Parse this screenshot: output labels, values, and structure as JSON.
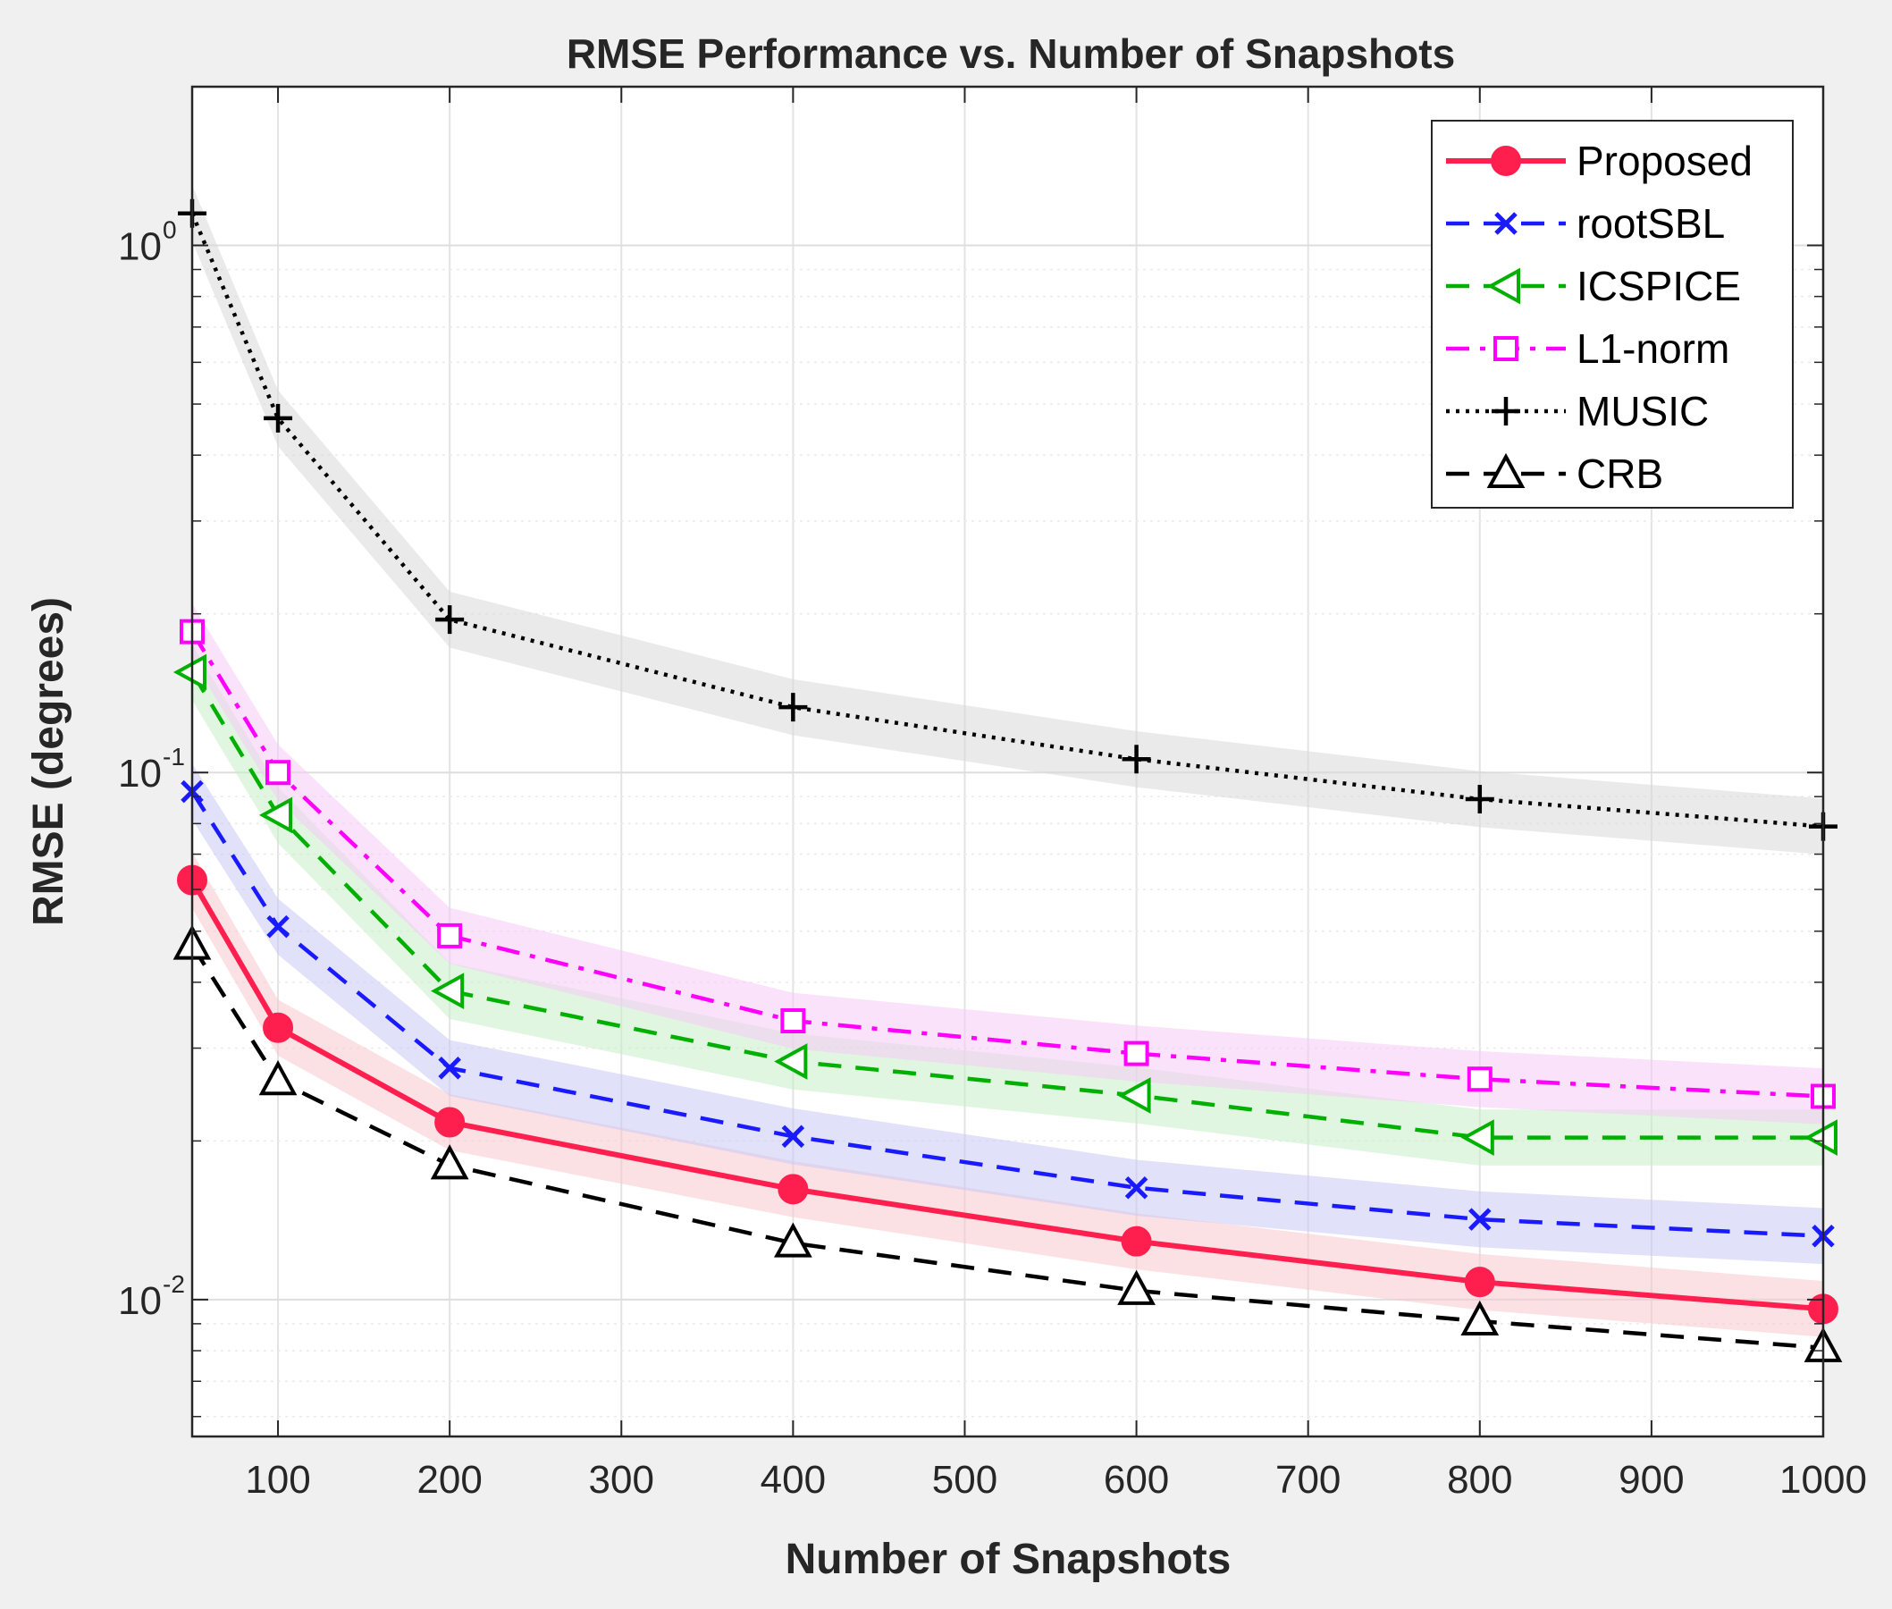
{
  "chart_data": {
    "type": "line",
    "title": "RMSE Performance vs. Number of Snapshots",
    "xlabel": "Number of Snapshots",
    "ylabel": "RMSE (degrees)",
    "xlim": [
      50,
      1000
    ],
    "ylim": [
      0.0055,
      2
    ],
    "yscale": "log",
    "x": [
      50,
      100,
      200,
      400,
      600,
      800,
      1000
    ],
    "xticks": [
      100,
      200,
      300,
      400,
      500,
      600,
      700,
      800,
      900,
      1000
    ],
    "yticks": [
      {
        "value": 1,
        "base": "10",
        "exp": "0"
      },
      {
        "value": 0.1,
        "base": "10",
        "exp": "-1"
      },
      {
        "value": 0.01,
        "base": "10",
        "exp": "-2"
      }
    ],
    "grid": true,
    "legend_position": "top-right",
    "series": [
      {
        "name": "Proposed",
        "color": "#ff1f4f",
        "marker": "circle",
        "line": "solid",
        "band_color": "#f7c6cd",
        "values": [
          0.0625,
          0.0328,
          0.0217,
          0.0162,
          0.0129,
          0.0108,
          0.0096
        ]
      },
      {
        "name": "rootSBL",
        "color": "#1a1aff",
        "marker": "x",
        "line": "dashed",
        "band_color": "#c8c8f4",
        "values": [
          0.092,
          0.051,
          0.0275,
          0.0204,
          0.0163,
          0.0142,
          0.0132
        ]
      },
      {
        "name": "ICSPICE",
        "color": "#00b000",
        "marker": "triangle-left",
        "line": "dashed",
        "band_color": "#c8eec8",
        "values": [
          0.155,
          0.083,
          0.0385,
          0.0283,
          0.0244,
          0.0203,
          0.0203
        ]
      },
      {
        "name": "L1-norm",
        "color": "#ff00ff",
        "marker": "square",
        "line": "dashdot",
        "band_color": "#f6cbf6",
        "values": [
          0.185,
          0.1,
          0.049,
          0.0338,
          0.0293,
          0.0262,
          0.0243
        ]
      },
      {
        "name": "MUSIC",
        "color": "#000000",
        "marker": "plus",
        "line": "dotted",
        "band_color": "#d9d9d9",
        "values": [
          1.15,
          0.47,
          0.195,
          0.133,
          0.106,
          0.089,
          0.079
        ]
      },
      {
        "name": "CRB",
        "color": "#000000",
        "marker": "triangle-up",
        "line": "dashed",
        "band_color": null,
        "values": [
          0.047,
          0.026,
          0.018,
          0.0128,
          0.0104,
          0.0091,
          0.0081
        ]
      }
    ]
  }
}
